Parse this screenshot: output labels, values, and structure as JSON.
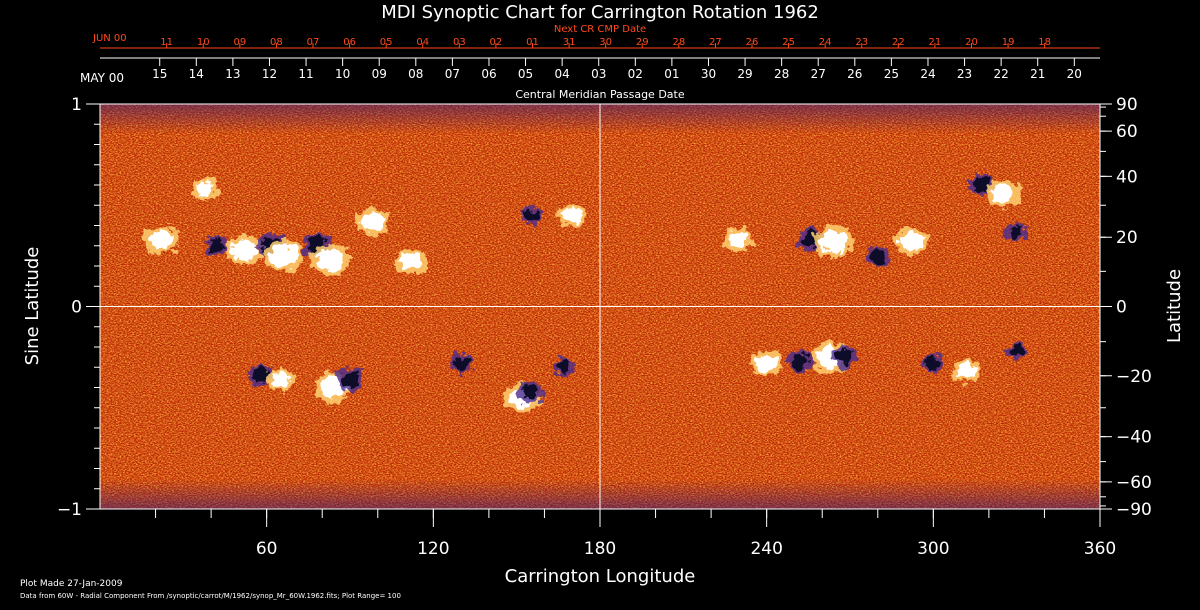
{
  "chart_data": {
    "type": "heatmap",
    "title": "MDI Synoptic Chart for Carrington Rotation 1962",
    "xlabel": "Carrington Longitude",
    "ylabel_left": "Sine Latitude",
    "ylabel_right": "Latitude",
    "top_axis_label": "Central Meridian Passage Date",
    "next_axis_label": "Next CR CMP Date",
    "xlim": [
      0,
      360
    ],
    "ylim": [
      -1,
      1
    ],
    "x_ticks": [
      60,
      120,
      180,
      240,
      300,
      360
    ],
    "y_ticks_left": [
      {
        "value": 1,
        "label": "1"
      },
      {
        "value": 0,
        "label": "0"
      },
      {
        "value": -1,
        "label": "−1"
      }
    ],
    "lat_ticks_right": [
      {
        "lat": 90,
        "label": "90"
      },
      {
        "lat": 60,
        "label": "60"
      },
      {
        "lat": 40,
        "label": "40"
      },
      {
        "lat": 20,
        "label": "20"
      },
      {
        "lat": 0,
        "label": "0"
      },
      {
        "lat": -20,
        "label": "−20"
      },
      {
        "lat": -40,
        "label": "−40"
      },
      {
        "lat": -60,
        "label": "−60"
      },
      {
        "lat": -90,
        "label": "−90"
      }
    ],
    "cmp_dates": {
      "month_label": "MAY 00",
      "labels": [
        "15",
        "14",
        "13",
        "12",
        "11",
        "10",
        "09",
        "08",
        "07",
        "06",
        "05",
        "04",
        "03",
        "02",
        "01",
        "30",
        "29",
        "28",
        "27",
        "26",
        "25",
        "24",
        "23",
        "22",
        "21",
        "20"
      ],
      "first_lon": 21.5,
      "step_lon": 13.17
    },
    "next_cmp_dates": {
      "month_label": "JUN 00",
      "labels": [
        "11",
        "10",
        "09",
        "08",
        "07",
        "06",
        "05",
        "04",
        "03",
        "02",
        "01",
        "31",
        "30",
        "29",
        "28",
        "27",
        "26",
        "25",
        "24",
        "23",
        "22",
        "21",
        "20",
        "19",
        "18"
      ],
      "first_lon": 24,
      "step_lon": 13.17
    },
    "grid_lines": {
      "x": [
        180
      ],
      "y": [
        0
      ]
    },
    "colormap": [
      "#1a1060",
      "#c82000",
      "#f07a20",
      "#ffffff"
    ],
    "plot_range": 100,
    "activity_regions": [
      {
        "lon": 22,
        "sinlat": 0.33,
        "polarity": "positive",
        "strength": 0.8
      },
      {
        "lon": 42,
        "sinlat": 0.3,
        "polarity": "negative",
        "strength": 0.7
      },
      {
        "lon": 52,
        "sinlat": 0.28,
        "polarity": "positive",
        "strength": 0.9
      },
      {
        "lon": 62,
        "sinlat": 0.3,
        "polarity": "negative",
        "strength": 1.0
      },
      {
        "lon": 66,
        "sinlat": 0.25,
        "polarity": "positive",
        "strength": 1.0
      },
      {
        "lon": 78,
        "sinlat": 0.3,
        "polarity": "negative",
        "strength": 0.9
      },
      {
        "lon": 83,
        "sinlat": 0.23,
        "polarity": "positive",
        "strength": 1.0
      },
      {
        "lon": 98,
        "sinlat": 0.42,
        "polarity": "positive",
        "strength": 0.8
      },
      {
        "lon": 112,
        "sinlat": 0.22,
        "polarity": "positive",
        "strength": 0.7
      },
      {
        "lon": 38,
        "sinlat": 0.58,
        "polarity": "positive",
        "strength": 0.5
      },
      {
        "lon": 155,
        "sinlat": 0.45,
        "polarity": "negative",
        "strength": 0.6
      },
      {
        "lon": 170,
        "sinlat": 0.45,
        "polarity": "positive",
        "strength": 0.6
      },
      {
        "lon": 230,
        "sinlat": 0.33,
        "polarity": "positive",
        "strength": 0.6
      },
      {
        "lon": 256,
        "sinlat": 0.33,
        "polarity": "negative",
        "strength": 0.9
      },
      {
        "lon": 264,
        "sinlat": 0.32,
        "polarity": "positive",
        "strength": 1.0
      },
      {
        "lon": 280,
        "sinlat": 0.25,
        "polarity": "negative",
        "strength": 0.7
      },
      {
        "lon": 292,
        "sinlat": 0.32,
        "polarity": "positive",
        "strength": 0.8
      },
      {
        "lon": 317,
        "sinlat": 0.6,
        "polarity": "negative",
        "strength": 0.7
      },
      {
        "lon": 325,
        "sinlat": 0.56,
        "polarity": "positive",
        "strength": 0.8
      },
      {
        "lon": 330,
        "sinlat": 0.37,
        "polarity": "negative",
        "strength": 0.6
      },
      {
        "lon": 58,
        "sinlat": -0.34,
        "polarity": "negative",
        "strength": 0.7
      },
      {
        "lon": 65,
        "sinlat": -0.36,
        "polarity": "positive",
        "strength": 0.6
      },
      {
        "lon": 84,
        "sinlat": -0.4,
        "polarity": "positive",
        "strength": 0.9
      },
      {
        "lon": 90,
        "sinlat": -0.36,
        "polarity": "negative",
        "strength": 0.9
      },
      {
        "lon": 130,
        "sinlat": -0.28,
        "polarity": "negative",
        "strength": 0.6
      },
      {
        "lon": 152,
        "sinlat": -0.45,
        "polarity": "positive",
        "strength": 0.9
      },
      {
        "lon": 155,
        "sinlat": -0.42,
        "polarity": "negative",
        "strength": 0.8
      },
      {
        "lon": 167,
        "sinlat": -0.3,
        "polarity": "negative",
        "strength": 0.6
      },
      {
        "lon": 240,
        "sinlat": -0.28,
        "polarity": "positive",
        "strength": 0.7
      },
      {
        "lon": 252,
        "sinlat": -0.27,
        "polarity": "negative",
        "strength": 0.7
      },
      {
        "lon": 263,
        "sinlat": -0.25,
        "polarity": "positive",
        "strength": 1.0
      },
      {
        "lon": 268,
        "sinlat": -0.25,
        "polarity": "negative",
        "strength": 0.8
      },
      {
        "lon": 300,
        "sinlat": -0.28,
        "polarity": "negative",
        "strength": 0.6
      },
      {
        "lon": 312,
        "sinlat": -0.32,
        "polarity": "positive",
        "strength": 0.6
      },
      {
        "lon": 330,
        "sinlat": -0.22,
        "polarity": "negative",
        "strength": 0.5
      }
    ]
  },
  "footer": {
    "plot_made": "Plot Made 27-Jan-2009",
    "data_source": "Data from 60W - Radial Component From /synoptic/carrot/M/1962/synop_Mr_60W.1962.fits; Plot Range=  100"
  }
}
